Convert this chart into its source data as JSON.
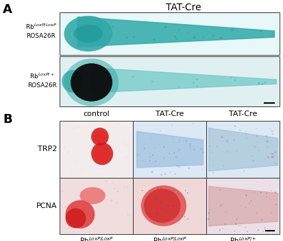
{
  "panel_A_label": "A",
  "panel_B_label": "B",
  "panel_A_title": "TAT-Cre",
  "panel_B_col_labels": [
    "control",
    "TAT-Cre",
    "TAT-Cre"
  ],
  "panel_A_row_labels_line1": [
    "Rb",
    "Rb"
  ],
  "panel_A_row_labels_sup": [
    "LoxP/LoxP",
    "LoxP/+"
  ],
  "panel_A_row_labels_line2": [
    "ROSA26R",
    "ROSA26R"
  ],
  "panel_B_row_labels": [
    "TRP2",
    "PCNA"
  ],
  "panel_B_bottom_labels_base": [
    "Rb",
    "Rb",
    "Rb"
  ],
  "panel_B_bottom_labels_sup": [
    "LoxP/LoxP",
    "LoxP/LoxP",
    "LoxP/+"
  ],
  "bg_color": "#ffffff",
  "border_color": "#333333",
  "img_bg_row1": "#dff0f0",
  "img_bg_row2": "#d8ecec",
  "teal_dark": "#1a9090",
  "teal_mid": "#30a8a8",
  "teal_light": "#70c8c8",
  "black_blob": "#0a0a0a",
  "cell_colors_B": [
    [
      "#f0e8e8",
      "#dce8f0",
      "#dce8f2"
    ],
    [
      "#f0d8d8",
      "#f0d0d0",
      "#ead8e8"
    ]
  ]
}
